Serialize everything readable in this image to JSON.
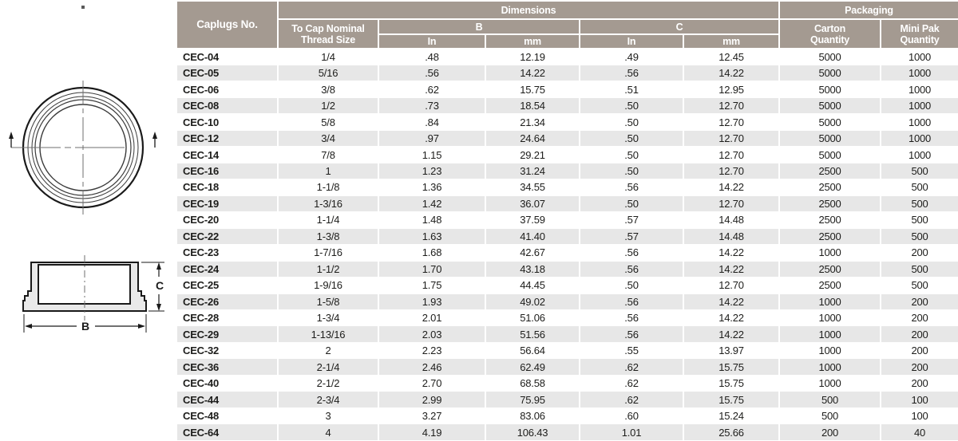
{
  "colors": {
    "header_bg": "#a49a91",
    "row_stripe": "#e7e7e7",
    "text": "#1d1d1b",
    "diagram_fill": "#e9e9e9"
  },
  "diagram": {
    "b_label": "B",
    "c_label": "C"
  },
  "table": {
    "header": {
      "caplugs_no": "Caplugs No.",
      "thread_size": "To Cap Nominal\nThread Size",
      "dimensions": "Dimensions",
      "b": "B",
      "c": "C",
      "in": "In",
      "mm": "mm",
      "packaging": "Packaging",
      "carton_quantity": "Carton\nQuantity",
      "mini_pak_quantity": "Mini Pak\nQuantity"
    },
    "col_names": [
      "caplugs-no-cell",
      "thread-size-cell",
      "b-in-cell",
      "b-mm-cell",
      "c-in-cell",
      "c-mm-cell",
      "carton-qty-cell",
      "mini-pak-qty-cell"
    ],
    "rows": [
      [
        "CEC-04",
        "1/4",
        ".48",
        "12.19",
        ".49",
        "12.45",
        "5000",
        "1000"
      ],
      [
        "CEC-05",
        "5/16",
        ".56",
        "14.22",
        ".56",
        "14.22",
        "5000",
        "1000"
      ],
      [
        "CEC-06",
        "3/8",
        ".62",
        "15.75",
        ".51",
        "12.95",
        "5000",
        "1000"
      ],
      [
        "CEC-08",
        "1/2",
        ".73",
        "18.54",
        ".50",
        "12.70",
        "5000",
        "1000"
      ],
      [
        "CEC-10",
        "5/8",
        ".84",
        "21.34",
        ".50",
        "12.70",
        "5000",
        "1000"
      ],
      [
        "CEC-12",
        "3/4",
        ".97",
        "24.64",
        ".50",
        "12.70",
        "5000",
        "1000"
      ],
      [
        "CEC-14",
        "7/8",
        "1.15",
        "29.21",
        ".50",
        "12.70",
        "5000",
        "1000"
      ],
      [
        "CEC-16",
        "1",
        "1.23",
        "31.24",
        ".50",
        "12.70",
        "2500",
        "500"
      ],
      [
        "CEC-18",
        "1-1/8",
        "1.36",
        "34.55",
        ".56",
        "14.22",
        "2500",
        "500"
      ],
      [
        "CEC-19",
        "1-3/16",
        "1.42",
        "36.07",
        ".50",
        "12.70",
        "2500",
        "500"
      ],
      [
        "CEC-20",
        "1-1/4",
        "1.48",
        "37.59",
        ".57",
        "14.48",
        "2500",
        "500"
      ],
      [
        "CEC-22",
        "1-3/8",
        "1.63",
        "41.40",
        ".57",
        "14.48",
        "2500",
        "500"
      ],
      [
        "CEC-23",
        "1-7/16",
        "1.68",
        "42.67",
        ".56",
        "14.22",
        "1000",
        "200"
      ],
      [
        "CEC-24",
        "1-1/2",
        "1.70",
        "43.18",
        ".56",
        "14.22",
        "2500",
        "500"
      ],
      [
        "CEC-25",
        "1-9/16",
        "1.75",
        "44.45",
        ".50",
        "12.70",
        "2500",
        "500"
      ],
      [
        "CEC-26",
        "1-5/8",
        "1.93",
        "49.02",
        ".56",
        "14.22",
        "1000",
        "200"
      ],
      [
        "CEC-28",
        "1-3/4",
        "2.01",
        "51.06",
        ".56",
        "14.22",
        "1000",
        "200"
      ],
      [
        "CEC-29",
        "1-13/16",
        "2.03",
        "51.56",
        ".56",
        "14.22",
        "1000",
        "200"
      ],
      [
        "CEC-32",
        "2",
        "2.23",
        "56.64",
        ".55",
        "13.97",
        "1000",
        "200"
      ],
      [
        "CEC-36",
        "2-1/4",
        "2.46",
        "62.49",
        ".62",
        "15.75",
        "1000",
        "200"
      ],
      [
        "CEC-40",
        "2-1/2",
        "2.70",
        "68.58",
        ".62",
        "15.75",
        "1000",
        "200"
      ],
      [
        "CEC-44",
        "2-3/4",
        "2.99",
        "75.95",
        ".62",
        "15.75",
        "500",
        "100"
      ],
      [
        "CEC-48",
        "3",
        "3.27",
        "83.06",
        ".60",
        "15.24",
        "500",
        "100"
      ],
      [
        "CEC-64",
        "4",
        "4.19",
        "106.43",
        "1.01",
        "25.66",
        "200",
        "40"
      ]
    ]
  }
}
